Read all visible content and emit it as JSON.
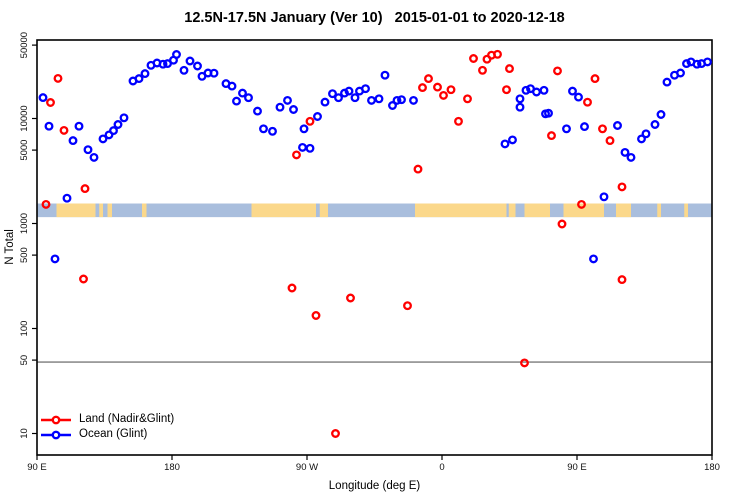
{
  "header": {
    "title": "12.5N-17.5N January (Ver 10)   2015-01-01 to 2020-12-18"
  },
  "chart_data": {
    "type": "scatter",
    "title": "12.5N-17.5N January (Ver 10)   2015-01-01 to 2020-12-18",
    "xlabel": "Longitude (deg E)",
    "ylabel": "N Total",
    "x_axis": {
      "note": "longitude axis spans 450 deg, wrapping: 90E -> 180 -> 90W -> 0 -> 90E -> 180; stored x = unwrapped axis degrees 90..540",
      "range_deg": [
        90,
        540
      ],
      "ticks": [
        {
          "deg": 90,
          "label": "90 E"
        },
        {
          "deg": 180,
          "label": "180"
        },
        {
          "deg": 270,
          "label": "90 W"
        },
        {
          "deg": 360,
          "label": "0"
        },
        {
          "deg": 450,
          "label": "90 E"
        },
        {
          "deg": 540,
          "label": "180"
        }
      ]
    },
    "y_axis": {
      "scale": "log10",
      "range": [
        6,
        56000
      ],
      "ticks": [
        10,
        50,
        100,
        500,
        1000,
        5000,
        10000,
        50000
      ]
    },
    "ref_line_n": 50,
    "ref_line_color": "#7a7a7a",
    "legend_position": "bottom-left",
    "grid": false,
    "series": [
      {
        "name": "Land (Nadir&Glint)",
        "color": "#ff0000",
        "points": [
          [
            96,
            1520
          ],
          [
            99,
            14200
          ],
          [
            104,
            24100
          ],
          [
            108,
            7700
          ],
          [
            121,
            296
          ],
          [
            122,
            2150
          ],
          [
            260,
            243
          ],
          [
            263,
            4500
          ],
          [
            272,
            9400
          ],
          [
            276,
            133
          ],
          [
            289,
            10
          ],
          [
            299,
            195
          ],
          [
            337,
            165
          ],
          [
            344,
            3300
          ],
          [
            347,
            19700
          ],
          [
            351,
            24000
          ],
          [
            357,
            19900
          ],
          [
            361,
            16600
          ],
          [
            366,
            18800
          ],
          [
            371,
            9400
          ],
          [
            377,
            15400
          ],
          [
            381,
            37300
          ],
          [
            387,
            28800
          ],
          [
            390,
            36700
          ],
          [
            393,
            40100
          ],
          [
            397,
            40900
          ],
          [
            403,
            18800
          ],
          [
            405,
            29900
          ],
          [
            415,
            47
          ],
          [
            433,
            6870
          ],
          [
            437,
            28400
          ],
          [
            440,
            990
          ],
          [
            453,
            1520
          ],
          [
            457,
            14300
          ],
          [
            462,
            24000
          ],
          [
            467,
            7970
          ],
          [
            472,
            6160
          ],
          [
            480,
            2230
          ],
          [
            480,
            292
          ]
        ]
      },
      {
        "name": "Ocean (Glint)",
        "color": "#0000ff",
        "points": [
          [
            94,
            15800
          ],
          [
            98,
            8440
          ],
          [
            102,
            460
          ],
          [
            110,
            1740
          ],
          [
            114,
            6160
          ],
          [
            118,
            8440
          ],
          [
            124,
            5050
          ],
          [
            128,
            4265
          ],
          [
            134,
            6390
          ],
          [
            138,
            6980
          ],
          [
            141,
            7670
          ],
          [
            144,
            8770
          ],
          [
            148,
            10160
          ],
          [
            154,
            22750
          ],
          [
            158,
            23980
          ],
          [
            162,
            26790
          ],
          [
            166,
            32130
          ],
          [
            170,
            33810
          ],
          [
            174,
            32880
          ],
          [
            177,
            33340
          ],
          [
            181,
            35890
          ],
          [
            183,
            40650
          ],
          [
            188,
            28780
          ],
          [
            192,
            35320
          ],
          [
            197,
            31620
          ],
          [
            200,
            25240
          ],
          [
            204,
            27100
          ],
          [
            208,
            26980
          ],
          [
            216,
            21480
          ],
          [
            220,
            20370
          ],
          [
            223,
            14650
          ],
          [
            227,
            17460
          ],
          [
            231,
            15780
          ],
          [
            237,
            11750
          ],
          [
            241,
            7970
          ],
          [
            247,
            7550
          ],
          [
            252,
            12820
          ],
          [
            257,
            14860
          ],
          [
            261,
            12190
          ],
          [
            267,
            5310
          ],
          [
            268,
            7970
          ],
          [
            272,
            5200
          ],
          [
            277,
            10450
          ],
          [
            282,
            14320
          ],
          [
            287,
            17220
          ],
          [
            291,
            15780
          ],
          [
            295,
            17460
          ],
          [
            298,
            18240
          ],
          [
            302,
            15780
          ],
          [
            305,
            18240
          ],
          [
            309,
            19240
          ],
          [
            313,
            14860
          ],
          [
            318,
            15420
          ],
          [
            322,
            25820
          ],
          [
            327,
            13300
          ],
          [
            330,
            14860
          ],
          [
            333,
            15100
          ],
          [
            341,
            14860
          ],
          [
            402,
            5730
          ],
          [
            407,
            6250
          ],
          [
            412,
            15420
          ],
          [
            412,
            12820
          ],
          [
            416,
            18540
          ],
          [
            419,
            19240
          ],
          [
            423,
            17870
          ],
          [
            428,
            18540
          ],
          [
            429,
            11090
          ],
          [
            431,
            11240
          ],
          [
            443,
            7970
          ],
          [
            447,
            18240
          ],
          [
            451,
            16000
          ],
          [
            455,
            8380
          ],
          [
            461,
            460
          ],
          [
            468,
            1795
          ],
          [
            477,
            8570
          ],
          [
            482,
            4750
          ],
          [
            486,
            4265
          ],
          [
            493,
            6390
          ],
          [
            496,
            7145
          ],
          [
            502,
            8770
          ],
          [
            506,
            10920
          ],
          [
            510,
            22230
          ],
          [
            515,
            25820
          ],
          [
            519,
            27100
          ],
          [
            523,
            33340
          ],
          [
            526,
            34590
          ],
          [
            530,
            32880
          ],
          [
            533,
            33340
          ],
          [
            537,
            34590
          ]
        ]
      }
    ],
    "map_strip": {
      "description": "decorative world-map latitude strip drawn across the plot",
      "ocean_color": "#a9bedd",
      "land_color": "#fbd88b",
      "n_range": [
        1150,
        1550
      ],
      "land_segments_deg": [
        [
          103,
          129
        ],
        [
          131.5,
          134
        ],
        [
          137,
          140
        ],
        [
          160,
          163
        ],
        [
          233,
          276
        ],
        [
          278.5,
          284
        ],
        [
          342,
          403
        ],
        [
          404.5,
          409
        ],
        [
          415,
          432
        ],
        [
          441,
          468
        ],
        [
          476,
          486
        ],
        [
          503.5,
          506
        ],
        [
          521.5,
          524
        ]
      ]
    }
  }
}
